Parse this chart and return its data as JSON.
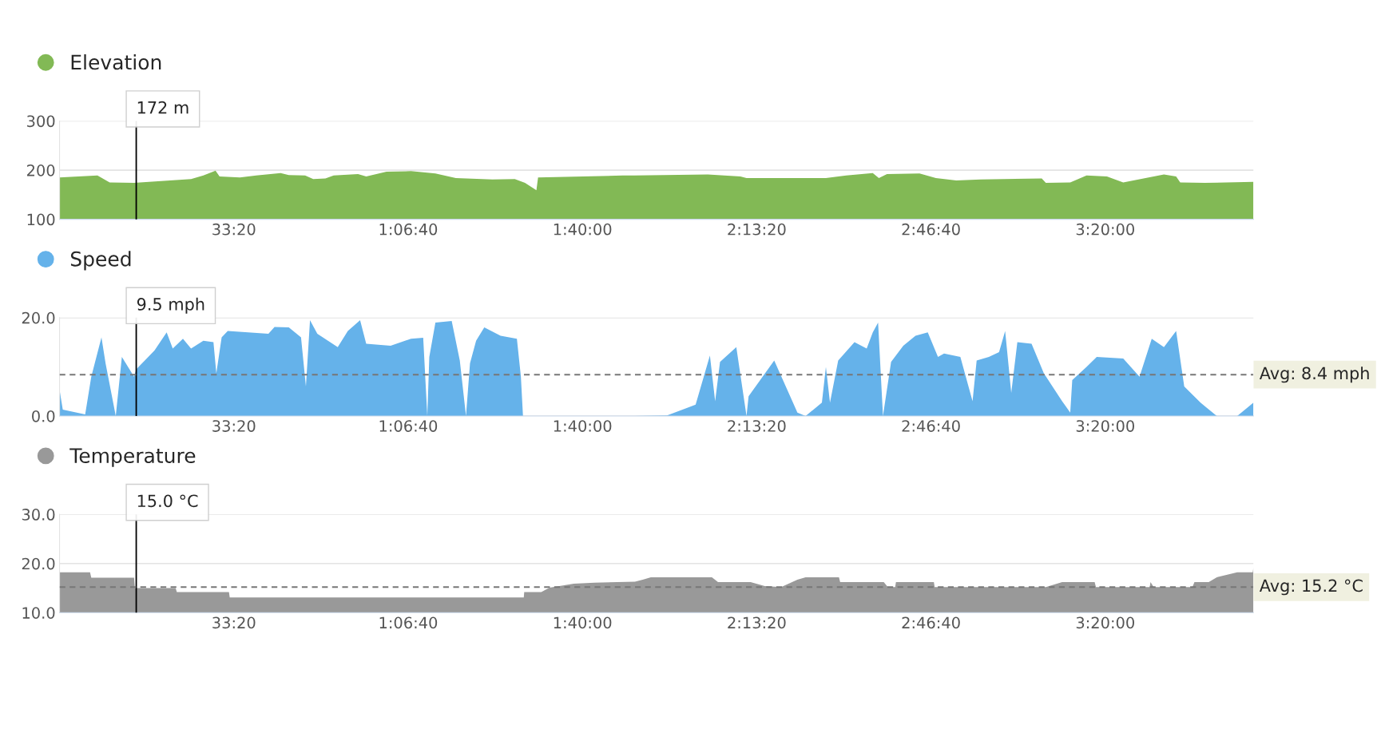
{
  "chart_data": [
    {
      "type": "area",
      "legend": "top left",
      "grid": "y",
      "xlim": [
        0,
        13700
      ],
      "xticks": [
        {
          "value": 2000,
          "label": "33:20"
        },
        {
          "value": 4000,
          "label": "1:06:40"
        },
        {
          "value": 6000,
          "label": "1:40:00"
        },
        {
          "value": 8000,
          "label": "2:13:20"
        },
        {
          "value": 10000,
          "label": "2:46:40"
        },
        {
          "value": 12000,
          "label": "3:20:00"
        }
      ],
      "ylim": [
        100,
        300
      ],
      "yticks": [
        100,
        200,
        300
      ],
      "series": [
        {
          "name": "Elevation",
          "color": "#82b955",
          "x": [
            0,
            435,
            575,
            855,
            1509,
            1650,
            1790,
            1836,
            2070,
            2257,
            2537,
            2630,
            2818,
            2911,
            3051,
            3145,
            3425,
            3519,
            3752,
            4033,
            4313,
            4547,
            4967,
            5224,
            5341,
            5472,
            5491,
            6463,
            6598,
            7439,
            7813,
            7883,
            8794,
            9028,
            9332,
            9402,
            9495,
            9869,
            10056,
            10290,
            10570,
            11271,
            11318,
            11598,
            11785,
            12019,
            12206,
            12439,
            12673,
            12813,
            12860,
            13140,
            13700
          ],
          "values": [
            185,
            189,
            175,
            174,
            182,
            189,
            199,
            187,
            185,
            189,
            194,
            190,
            189,
            182,
            183,
            189,
            192,
            187,
            197,
            198,
            193,
            184,
            181,
            182,
            174,
            159,
            185,
            189,
            189,
            191,
            187,
            184,
            184,
            189,
            194,
            184,
            192,
            193,
            184,
            179,
            181,
            183,
            174,
            175,
            189,
            187,
            175,
            183,
            191,
            187,
            175,
            174,
            176
          ]
        }
      ],
      "ref_lines": [
        {
          "axis": "x",
          "value": 880,
          "color": "#000000"
        }
      ],
      "annotations": [
        "172 m"
      ]
    },
    {
      "type": "area",
      "legend": "top left",
      "grid": "y",
      "xlim": [
        0,
        13700
      ],
      "xticks": [
        {
          "value": 2000,
          "label": "33:20"
        },
        {
          "value": 4000,
          "label": "1:06:40"
        },
        {
          "value": 6000,
          "label": "1:40:00"
        },
        {
          "value": 8000,
          "label": "2:13:20"
        },
        {
          "value": 10000,
          "label": "2:46:40"
        },
        {
          "value": 12000,
          "label": "3:20:00"
        }
      ],
      "ylim": [
        0,
        20
      ],
      "yticks": [
        {
          "value": 0,
          "label": "0.0"
        },
        {
          "value": 20,
          "label": "20.0"
        }
      ],
      "series": [
        {
          "name": "Speed",
          "color": "#65b2ea",
          "x": [
            0,
            37,
            294,
            364,
            481,
            528,
            645,
            715,
            855,
            880,
            1089,
            1229,
            1299,
            1416,
            1509,
            1650,
            1766,
            1799,
            1860,
            1930,
            2164,
            2397,
            2467,
            2631,
            2771,
            2827,
            2874,
            2958,
            3192,
            3308,
            3449,
            3519,
            3799,
            4033,
            4173,
            4220,
            4243,
            4313,
            4500,
            4593,
            4664,
            4710,
            4780,
            4874,
            5061,
            5248,
            5294,
            5318,
            6463,
            6598,
            6972,
            7299,
            7463,
            7523,
            7579,
            7766,
            7883,
            7907,
            8201,
            8467,
            8561,
            8748,
            8794,
            8841,
            8935,
            9122,
            9262,
            9332,
            9393,
            9449,
            9542,
            9682,
            9822,
            9963,
            10080,
            10150,
            10337,
            10477,
            10524,
            10664,
            10781,
            10851,
            10921,
            10991,
            11154,
            11295,
            11505,
            11598,
            11621,
            11785,
            11902,
            12206,
            12393,
            12533,
            12673,
            12813,
            12906,
            13093,
            13280,
            13514,
            13700
          ],
          "values": [
            5.3,
            1.3,
            0.3,
            8.0,
            16.0,
            10.7,
            0,
            12.0,
            8.0,
            9.5,
            13.3,
            17.0,
            13.7,
            15.7,
            13.7,
            15.3,
            15.0,
            8.7,
            16.0,
            17.3,
            17.0,
            16.7,
            18.1,
            18.0,
            16.0,
            6.0,
            19.5,
            16.7,
            14.0,
            17.3,
            19.5,
            14.7,
            14.3,
            15.7,
            15.9,
            0,
            12.0,
            19.0,
            19.3,
            11.3,
            0,
            10.7,
            15.3,
            18.0,
            16.3,
            15.7,
            8.0,
            0,
            0,
            0,
            0.1,
            2.3,
            12.3,
            3.0,
            11.0,
            14.0,
            0,
            4.0,
            11.3,
            0.7,
            0,
            2.7,
            10.0,
            2.7,
            11.3,
            15.0,
            13.7,
            17.0,
            19.0,
            0,
            11.0,
            14.3,
            16.3,
            17.0,
            12.0,
            12.7,
            12.0,
            3.0,
            11.3,
            12.0,
            13.0,
            17.3,
            4.7,
            15.0,
            14.7,
            8.7,
            3.0,
            0.7,
            7.3,
            10.0,
            12.0,
            11.7,
            8.0,
            15.7,
            14.0,
            17.3,
            6.0,
            2.7,
            0,
            0,
            2.7
          ]
        }
      ],
      "ref_lines": [
        {
          "axis": "x",
          "value": 880,
          "color": "#000000"
        },
        {
          "axis": "y",
          "value": 8.4,
          "label": "Avg: 8.4 mph",
          "color": "#777777",
          "line_style": "dashed"
        }
      ],
      "annotations": [
        "9.5 mph"
      ]
    },
    {
      "type": "area",
      "legend": "top left",
      "grid": "y",
      "xlim": [
        0,
        13700
      ],
      "xticks": [
        {
          "value": 2000,
          "label": "33:20"
        },
        {
          "value": 4000,
          "label": "1:06:40"
        },
        {
          "value": 6000,
          "label": "1:40:00"
        },
        {
          "value": 8000,
          "label": "2:13:20"
        },
        {
          "value": 10000,
          "label": "2:46:40"
        },
        {
          "value": 12000,
          "label": "3:20:00"
        }
      ],
      "ylim": [
        10,
        30
      ],
      "yticks": [
        {
          "value": 10,
          "label": "10.0"
        },
        {
          "value": 20,
          "label": "20.0"
        },
        {
          "value": 30,
          "label": "30.0"
        }
      ],
      "series": [
        {
          "name": "Temperature",
          "color": "#999999",
          "x": [
            0,
            350,
            364,
            584,
            855,
            864,
            1332,
            1346,
            1944,
            1953,
            4500,
            5327,
            5332,
            5528,
            5621,
            5902,
            6136,
            6603,
            6692,
            6785,
            7486,
            7556,
            7930,
            8093,
            8280,
            8467,
            8561,
            8944,
            8958,
            9458,
            9505,
            9589,
            9598,
            10033,
            10042,
            11318,
            11505,
            11878,
            11893,
            12510,
            12519,
            12556,
            13000,
            13023,
            13187,
            13280,
            13514,
            13692,
            13700
          ],
          "values": [
            18.2,
            18.2,
            17.1,
            17.1,
            17.1,
            15.0,
            15.0,
            14.2,
            14.2,
            13.1,
            13.1,
            13.1,
            14.2,
            14.2,
            15.1,
            15.9,
            16.1,
            16.3,
            16.7,
            17.2,
            17.2,
            16.2,
            16.2,
            15.4,
            15.2,
            16.7,
            17.2,
            17.2,
            16.2,
            16.2,
            15.2,
            15.2,
            16.2,
            16.2,
            15.2,
            15.2,
            16.2,
            16.2,
            15.2,
            15.2,
            16.2,
            15.2,
            15.2,
            16.2,
            16.2,
            17.2,
            18.2,
            18.2,
            19.2
          ]
        }
      ],
      "ref_lines": [
        {
          "axis": "x",
          "value": 880,
          "color": "#000000"
        },
        {
          "axis": "y",
          "value": 15.2,
          "label": "Avg: 15.2 °C",
          "color": "#777777",
          "line_style": "dashed"
        }
      ],
      "annotations": [
        "15.0 °C"
      ]
    }
  ]
}
